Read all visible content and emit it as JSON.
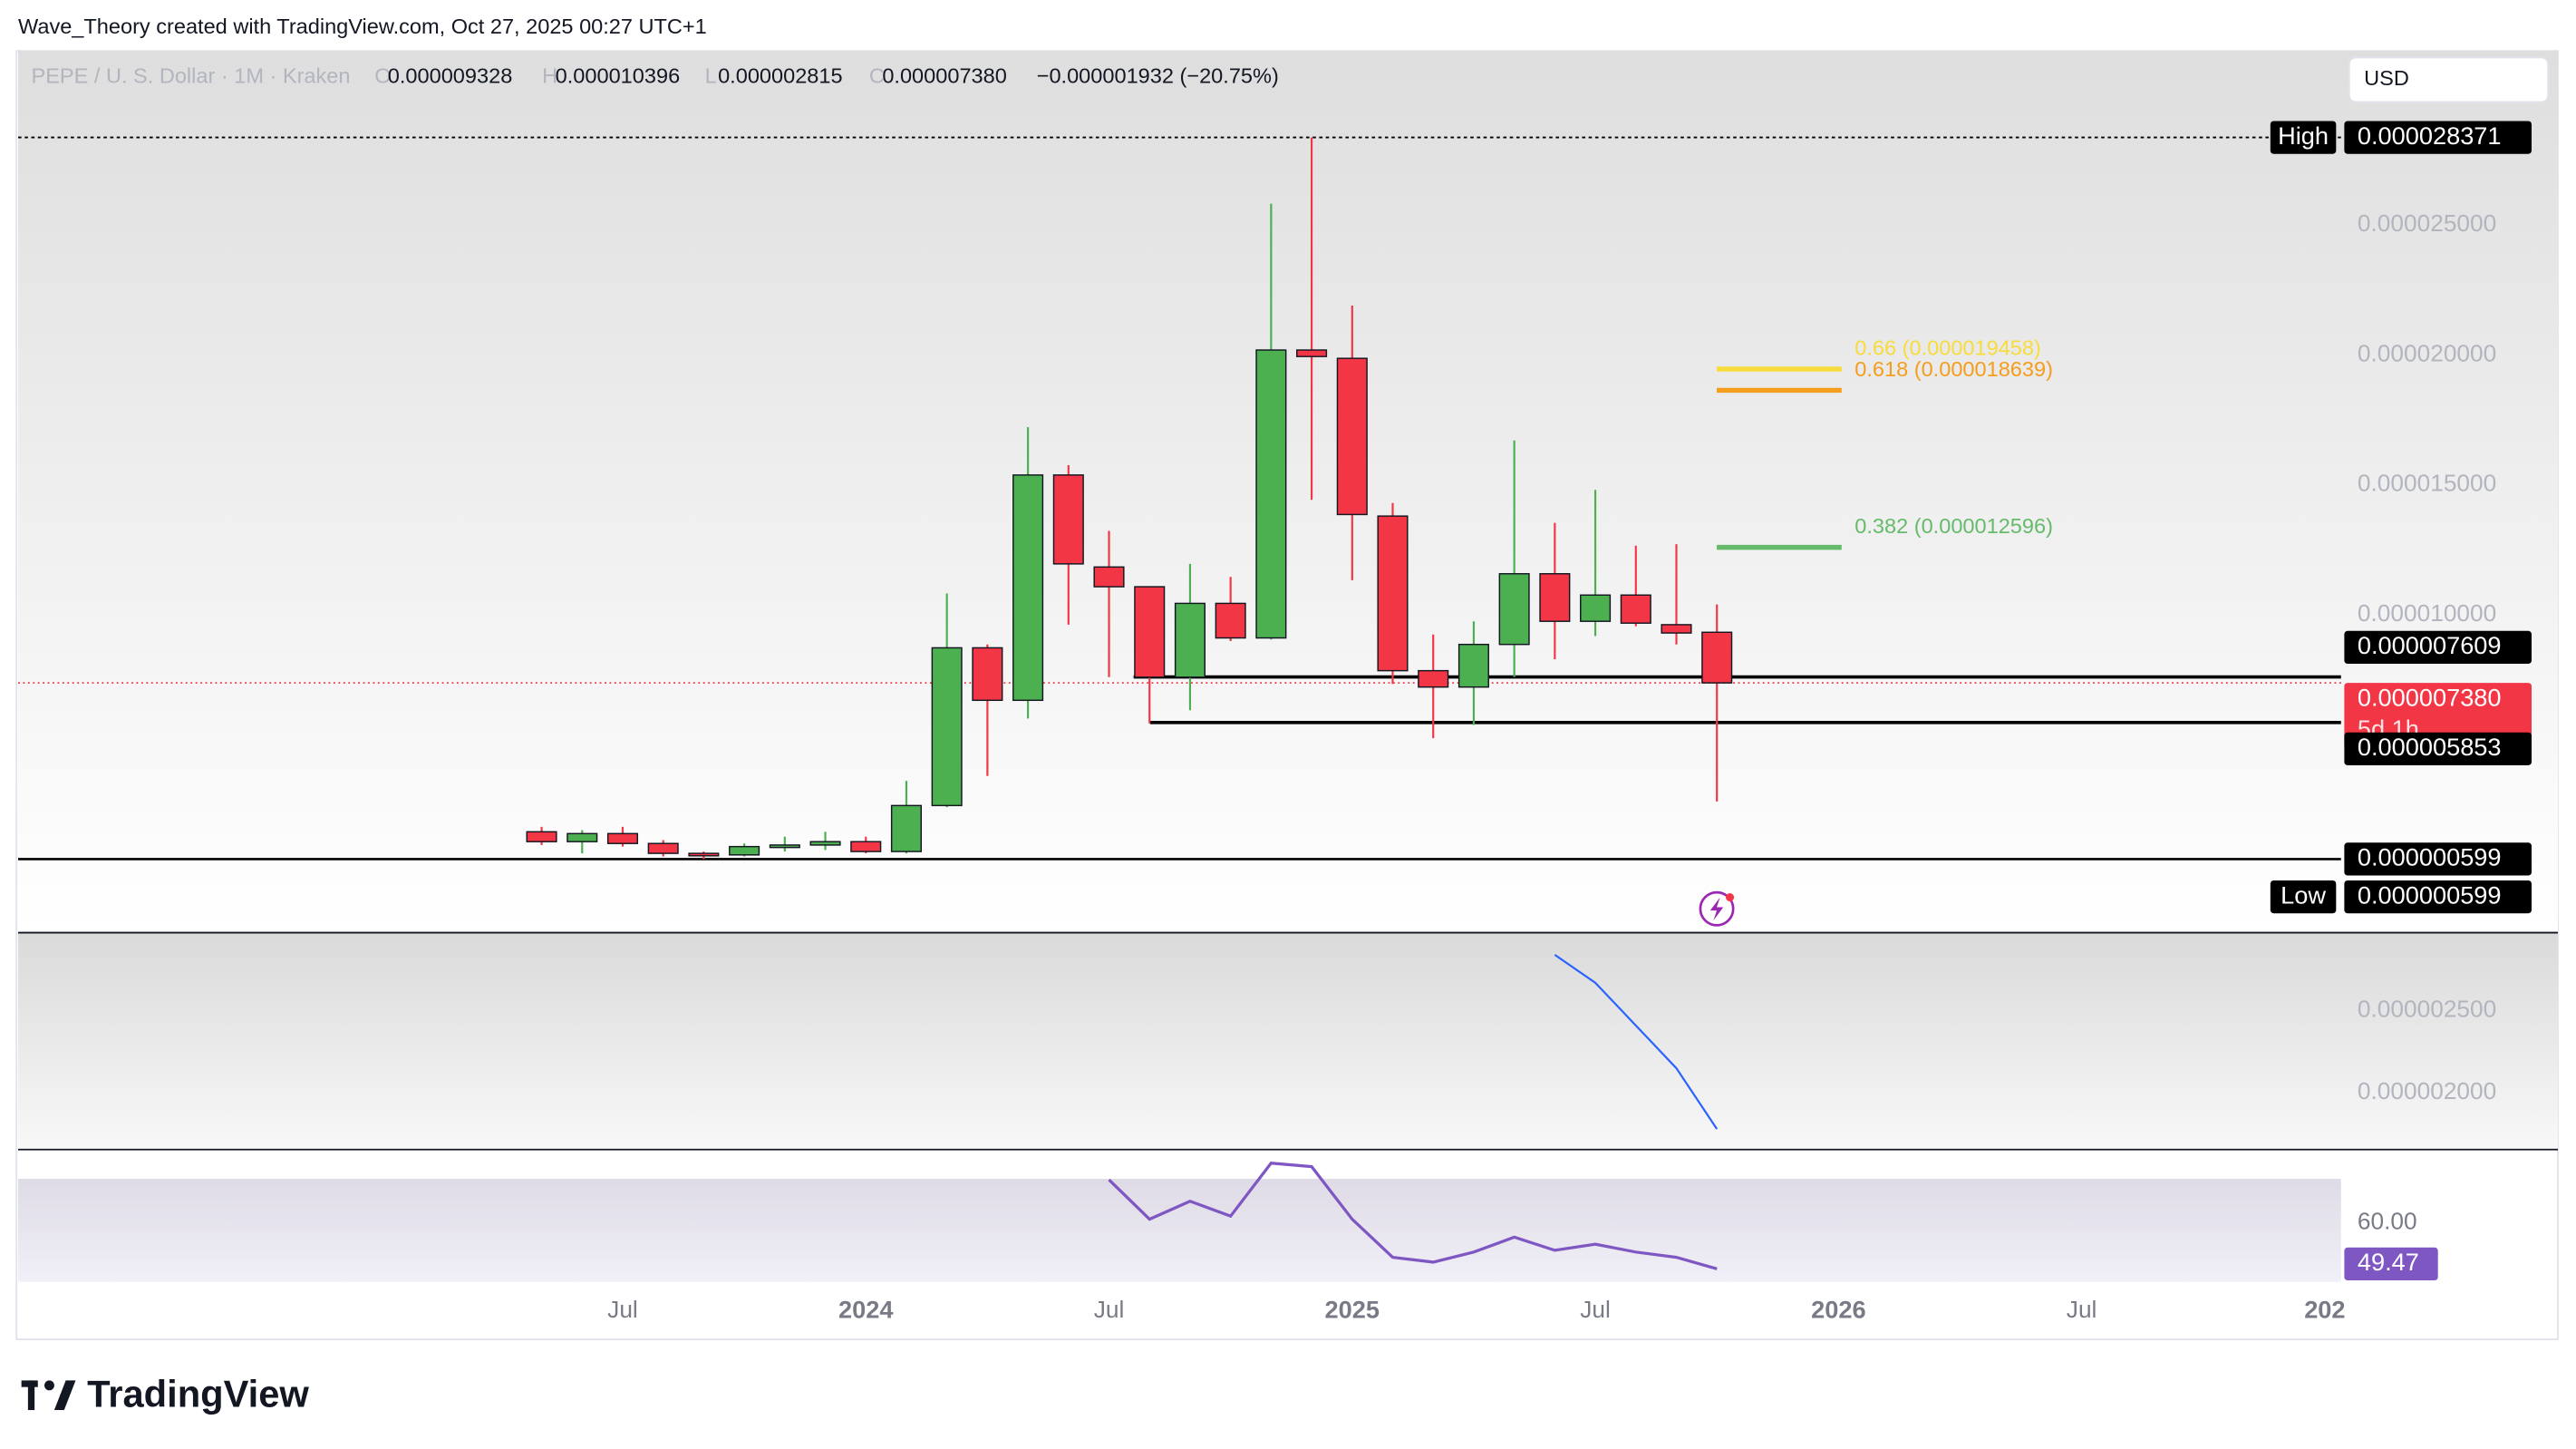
{
  "header": {
    "attribution": "Wave_Theory created with TradingView.com, Oct 27, 2025 00:27 UTC+1",
    "currency_button": "USD"
  },
  "footer": {
    "logo_text": "TradingView"
  },
  "chart_data": {
    "type": "candlestick",
    "title": "PEPE / U. S. Dollar · 1M · Kraken",
    "ohlc_legend": [
      {
        "key": "O",
        "text": "0.000009328"
      },
      {
        "key": "H",
        "text": "0.000010396"
      },
      {
        "key": "L",
        "text": "0.000002815"
      },
      {
        "key": "C",
        "text": "0.000007380"
      }
    ],
    "change_text": "−0.000001932 (−20.75%)",
    "categories": [
      null,
      null,
      "Jul",
      null,
      null,
      null,
      null,
      null,
      "2024",
      null,
      null,
      null,
      null,
      null,
      "Jul",
      null,
      null,
      null,
      null,
      null,
      "2025",
      null,
      null,
      null,
      null,
      null,
      "Jul",
      null,
      null,
      null
    ],
    "future_categories": [
      null,
      null,
      "2026",
      null,
      null,
      null,
      null,
      null,
      "Jul",
      null,
      null,
      null,
      null,
      null,
      "202"
    ],
    "open": [
      1.65e-06,
      1.27e-06,
      1.58e-06,
      1.2e-06,
      8.2e-07,
      7.6e-07,
      1.08e-06,
      1.14e-06,
      1.27e-06,
      8.9e-07,
      2.66e-06,
      8.73e-06,
      6.71e-06,
      1.538e-05,
      1.184e-05,
      1.108e-05,
      7.6e-06,
      1.044e-05,
      9.11e-06,
      2.019e-05,
      1.987e-05,
      1.38e-05,
      7.85e-06,
      7.22e-06,
      8.86e-06,
      1.158e-05,
      9.75e-06,
      1.076e-05,
      9.62e-06,
      9.328e-06
    ],
    "high": [
      1.84e-06,
      1.71e-06,
      1.84e-06,
      1.33e-06,
      8.9e-07,
      1.2e-06,
      1.46e-06,
      1.65e-06,
      1.46e-06,
      3.61e-06,
      1.082e-05,
      8.86e-06,
      1.722e-05,
      1.576e-05,
      1.323e-05,
      1.108e-05,
      1.196e-05,
      1.146e-05,
      2.582e-05,
      2.8371e-05,
      2.19e-05,
      1.43e-05,
      9.24e-06,
      9.75e-06,
      1.671e-05,
      1.354e-05,
      1.481e-05,
      1.266e-05,
      1.272e-05,
      1.0396e-05
    ],
    "low": [
      1.14e-06,
      8.2e-07,
      1.08e-06,
      7e-07,
      5.99e-07,
      7e-07,
      8.9e-07,
      9.5e-07,
      8.2e-07,
      8.2e-07,
      2.6e-06,
      3.8e-06,
      6.01e-06,
      9.62e-06,
      7.6e-06,
      5.82e-06,
      6.33e-06,
      8.99e-06,
      9.05e-06,
      1.443e-05,
      1.133e-05,
      7.34e-06,
      5.25e-06,
      5.76e-06,
      7.6e-06,
      8.29e-06,
      9.18e-06,
      9.56e-06,
      8.86e-06,
      2.815e-06
    ],
    "close": [
      1.27e-06,
      1.58e-06,
      1.2e-06,
      8.2e-07,
      7.6e-07,
      1.08e-06,
      1.14e-06,
      1.27e-06,
      8.9e-07,
      2.66e-06,
      8.73e-06,
      6.71e-06,
      1.538e-05,
      1.196e-05,
      1.108e-05,
      7.6e-06,
      1.044e-05,
      9.11e-06,
      2.019e-05,
      1.994e-05,
      1.386e-05,
      7.85e-06,
      7.22e-06,
      8.86e-06,
      1.158e-05,
      9.75e-06,
      1.076e-05,
      9.68e-06,
      9.3e-06,
      7.38e-06
    ],
    "up_color": "#4caf50",
    "down_color": "#f23645",
    "ylim": [
      -2.2e-06,
      3.17e-05
    ],
    "yticks": [
      {
        "value": 2.5e-05,
        "label": "0.000025000"
      },
      {
        "value": 2e-05,
        "label": "0.000020000"
      },
      {
        "value": 1.5e-05,
        "label": "0.000015000"
      },
      {
        "value": 1e-05,
        "label": "0.000010000"
      }
    ],
    "fib_levels": [
      {
        "value": 1.9458e-05,
        "label": "0.66 (0.000019458)",
        "color": "#f7dc3c"
      },
      {
        "value": 1.8639e-05,
        "label": "0.618 (0.000018639)",
        "color": "#f59d1c"
      },
      {
        "value": 1.2596e-05,
        "label": "0.382 (0.000012596)",
        "color": "#66bb6a"
      }
    ],
    "price_labels": [
      {
        "caption": "High",
        "value": 2.8371e-05,
        "label": "0.000028371",
        "color": "#000000"
      },
      {
        "value": 7.609e-06,
        "label": "0.000007609",
        "color": "#000000"
      },
      {
        "value": 7.38e-06,
        "label": "0.000007380",
        "countdown": "5d 1h",
        "color": "#f23645"
      },
      {
        "value": 5.853e-06,
        "label": "0.000005853",
        "color": "#000000"
      },
      {
        "value": 5.99e-07,
        "label": "0.000000599",
        "color": "#000000"
      },
      {
        "caption": "Low",
        "value": 5.99e-07,
        "label": "0.000000599",
        "color": "#000000"
      }
    ],
    "indicator": {
      "color": "#2962ff",
      "values": [
        null,
        null,
        null,
        null,
        null,
        null,
        null,
        null,
        null,
        null,
        null,
        null,
        null,
        null,
        null,
        null,
        null,
        null,
        null,
        null,
        null,
        null,
        null,
        null,
        null,
        2.84e-06,
        2.67e-06,
        2.41e-06,
        2.15e-06,
        1.78e-06
      ],
      "ylim": [
        1.66e-06,
        2.97e-06
      ],
      "yticks": [
        {
          "value": 2.5e-06,
          "label": "0.000002500"
        },
        {
          "value": 2e-06,
          "label": "0.000002000"
        }
      ]
    },
    "rsi": {
      "color": "#7e57c2",
      "values": [
        null,
        null,
        null,
        null,
        null,
        null,
        null,
        null,
        null,
        null,
        null,
        null,
        null,
        null,
        69.8,
        60.8,
        64.9,
        61.5,
        73.6,
        72.8,
        60.8,
        52.1,
        51.0,
        53.3,
        56.7,
        53.7,
        55.1,
        53.3,
        52.1,
        49.47
      ],
      "value_labels": [
        null,
        null,
        null,
        null,
        null,
        null,
        null,
        null,
        null,
        null,
        null,
        null,
        null,
        null,
        null,
        null,
        null,
        null,
        null,
        null,
        null,
        null,
        null,
        null,
        null,
        null,
        null,
        null,
        null,
        "49.47"
      ],
      "ylim": [
        46.5,
        76.5
      ],
      "band_top": 70,
      "yticks": [
        {
          "value": 60,
          "label": "60.00"
        }
      ]
    }
  }
}
